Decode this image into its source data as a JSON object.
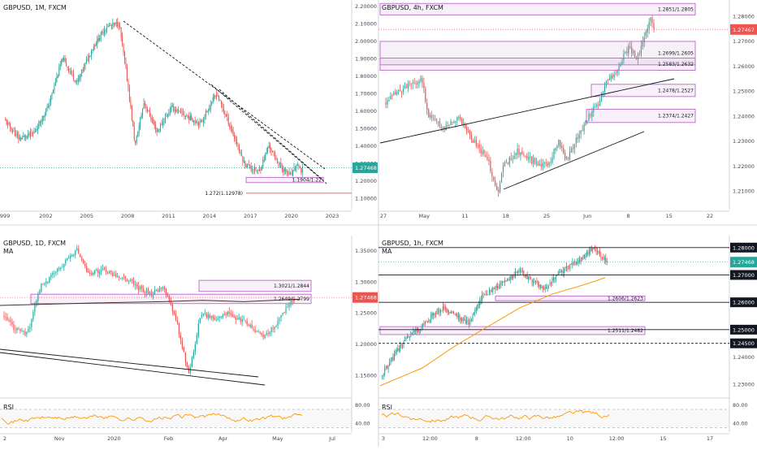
{
  "colors": {
    "up": "#26a69a",
    "down": "#ef5350",
    "zone": "#ba68c8",
    "trend": "#131722",
    "ma": "#ff9800",
    "rsi": "#ff9800",
    "price_tag": "#ef5350",
    "price_tag_alt": "#26a69a"
  },
  "chart_data": [
    {
      "type": "candlestick",
      "title": "GBPUSD, 1M, FXCM",
      "x_ticks": [
        "999",
        "2002",
        "2005",
        "2008",
        "2011",
        "2014",
        "2017",
        "2020",
        "2023"
      ],
      "y_ticks": [
        "2.20000",
        "2.10000",
        "2.00000",
        "1.90000",
        "1.80000",
        "1.70000",
        "1.60000",
        "1.50000",
        "1.40000",
        "1.30000",
        "1.20000",
        "1.10000"
      ],
      "ylim": [
        1.05,
        2.22
      ],
      "price_label": "1.27468",
      "zones": [
        {
          "label": "1.1904/1.22",
          "from": 1.1904,
          "to": 1.22
        }
      ],
      "levels": [
        {
          "label": "1.272(1.12978)",
          "value": 1.12978
        }
      ],
      "anchors": [
        [
          2000,
          1.55
        ],
        [
          2001,
          1.44
        ],
        [
          2002,
          1.47
        ],
        [
          2003,
          1.62
        ],
        [
          2004,
          1.9
        ],
        [
          2005,
          1.76
        ],
        [
          2006,
          1.95
        ],
        [
          2007,
          2.08
        ],
        [
          2007.9,
          2.1
        ],
        [
          2008.5,
          1.75
        ],
        [
          2009,
          1.4
        ],
        [
          2009.6,
          1.65
        ],
        [
          2010.5,
          1.48
        ],
        [
          2011.5,
          1.62
        ],
        [
          2012.5,
          1.57
        ],
        [
          2013.5,
          1.53
        ],
        [
          2014.6,
          1.7
        ],
        [
          2015.5,
          1.52
        ],
        [
          2016.5,
          1.3
        ],
        [
          2017.5,
          1.25
        ],
        [
          2018.2,
          1.4
        ],
        [
          2019,
          1.28
        ],
        [
          2019.7,
          1.23
        ],
        [
          2020.2,
          1.3
        ],
        [
          2020.4,
          1.24
        ],
        [
          2020.5,
          1.27
        ]
      ]
    },
    {
      "type": "candlestick",
      "title": "GBPUSD, 4h, FXCM",
      "x_ticks": [
        "27",
        "May",
        "11",
        "18",
        "25",
        "Jun",
        "8",
        "15",
        "22"
      ],
      "y_ticks": [
        "1.28000",
        "1.27000",
        "1.26000",
        "1.25000",
        "1.24000",
        "1.23000",
        "1.22000",
        "1.21000"
      ],
      "ylim": [
        1.2035,
        1.2855
      ],
      "price_label": "1.27467",
      "zones": [
        {
          "label": "1.2851/1.2805",
          "from": 1.2805,
          "to": 1.2851
        },
        {
          "label": "1.2699/1.2605",
          "from": 1.2605,
          "to": 1.2699
        },
        {
          "label": "1.2583/1.2632",
          "from": 1.2583,
          "to": 1.2632
        },
        {
          "label": "1.2478/1.2527",
          "from": 1.2478,
          "to": 1.2527
        },
        {
          "label": "1.2374/1.2427",
          "from": 1.2374,
          "to": 1.2427
        }
      ],
      "anchors": [
        [
          0,
          1.245
        ],
        [
          2,
          1.25
        ],
        [
          5,
          1.255
        ],
        [
          6,
          1.24
        ],
        [
          8,
          1.235
        ],
        [
          10,
          1.24
        ],
        [
          12,
          1.23
        ],
        [
          14,
          1.222
        ],
        [
          15.3,
          1.208
        ],
        [
          16,
          1.22
        ],
        [
          18,
          1.226
        ],
        [
          20,
          1.222
        ],
        [
          22,
          1.22
        ],
        [
          23.5,
          1.23
        ],
        [
          24.5,
          1.222
        ],
        [
          26,
          1.232
        ],
        [
          28,
          1.242
        ],
        [
          29,
          1.246
        ],
        [
          30,
          1.255
        ],
        [
          31,
          1.256
        ],
        [
          32,
          1.263
        ],
        [
          33,
          1.268
        ],
        [
          34,
          1.262
        ],
        [
          35,
          1.272
        ],
        [
          35.8,
          1.279
        ],
        [
          36.3,
          1.275
        ]
      ]
    },
    {
      "type": "candlestick",
      "title": "GBPUSD, 1D, FXCM",
      "subtitle": "MA",
      "x_ticks": [
        "2",
        "Nov",
        "2020",
        "Feb",
        "Apr",
        "May",
        "Jul"
      ],
      "y_ticks": [
        "1.35000",
        "1.30000",
        "1.25000",
        "1.20000",
        "1.15000"
      ],
      "ylim": [
        1.12,
        1.37
      ],
      "price_label": "1.27468",
      "zones": [
        {
          "label": "1.3021/1.2844",
          "from": 1.2844,
          "to": 1.3021
        },
        {
          "label": "1.2649/1.2799",
          "from": 1.2649,
          "to": 1.2799
        }
      ],
      "anchors": [
        [
          0,
          1.245
        ],
        [
          1,
          1.225
        ],
        [
          2,
          1.215
        ],
        [
          3,
          1.29
        ],
        [
          4,
          1.31
        ],
        [
          5,
          1.33
        ],
        [
          6,
          1.35
        ],
        [
          7,
          1.31
        ],
        [
          8,
          1.32
        ],
        [
          9,
          1.31
        ],
        [
          10,
          1.305
        ],
        [
          11,
          1.29
        ],
        [
          12,
          1.28
        ],
        [
          13,
          1.29
        ],
        [
          14,
          1.24
        ],
        [
          15,
          1.15
        ],
        [
          16,
          1.25
        ],
        [
          17,
          1.24
        ],
        [
          18,
          1.25
        ],
        [
          19,
          1.24
        ],
        [
          20,
          1.23
        ],
        [
          21,
          1.21
        ],
        [
          22,
          1.23
        ],
        [
          23,
          1.26
        ],
        [
          23.5,
          1.27
        ]
      ]
    },
    {
      "type": "candlestick",
      "title": "GBPUSD, 1h, FXCM",
      "subtitle": "MA",
      "x_ticks": [
        "3",
        "12:00",
        "8",
        "12:00",
        "10",
        "12:00",
        "15",
        "17"
      ],
      "y_ticks": [
        "1.28000",
        "1.27000",
        "1.26000",
        "1.25000",
        "1.24000",
        "1.23000"
      ],
      "ylim": [
        1.2265,
        1.2835
      ],
      "price_label": "1.27468",
      "level_labels": [
        "1.28000",
        "1.27000",
        "1.26000",
        "1.25000",
        "1.24500"
      ],
      "zones": [
        {
          "label": "1.2606/1.2623",
          "from": 1.2606,
          "to": 1.2623
        },
        {
          "label": "1.2511/1.2482",
          "from": 1.2482,
          "to": 1.2511
        }
      ],
      "anchors": [
        [
          0,
          1.233
        ],
        [
          1,
          1.24
        ],
        [
          2,
          1.247
        ],
        [
          3,
          1.25
        ],
        [
          4,
          1.255
        ],
        [
          5,
          1.258
        ],
        [
          6,
          1.255
        ],
        [
          7,
          1.252
        ],
        [
          8,
          1.262
        ],
        [
          9,
          1.265
        ],
        [
          10,
          1.268
        ],
        [
          11,
          1.272
        ],
        [
          12,
          1.268
        ],
        [
          13,
          1.265
        ],
        [
          14,
          1.27
        ],
        [
          15,
          1.273
        ],
        [
          16,
          1.276
        ],
        [
          17,
          1.28
        ],
        [
          17.6,
          1.276
        ],
        [
          18,
          1.275
        ]
      ]
    },
    {
      "type": "line",
      "title": "RSI",
      "y_ticks": [
        "80.00",
        "40.00"
      ],
      "ylim": [
        20,
        95
      ]
    },
    {
      "type": "line",
      "title": "RSI",
      "y_ticks": [
        "80.00",
        "40.00"
      ],
      "ylim": [
        20,
        95
      ]
    }
  ]
}
